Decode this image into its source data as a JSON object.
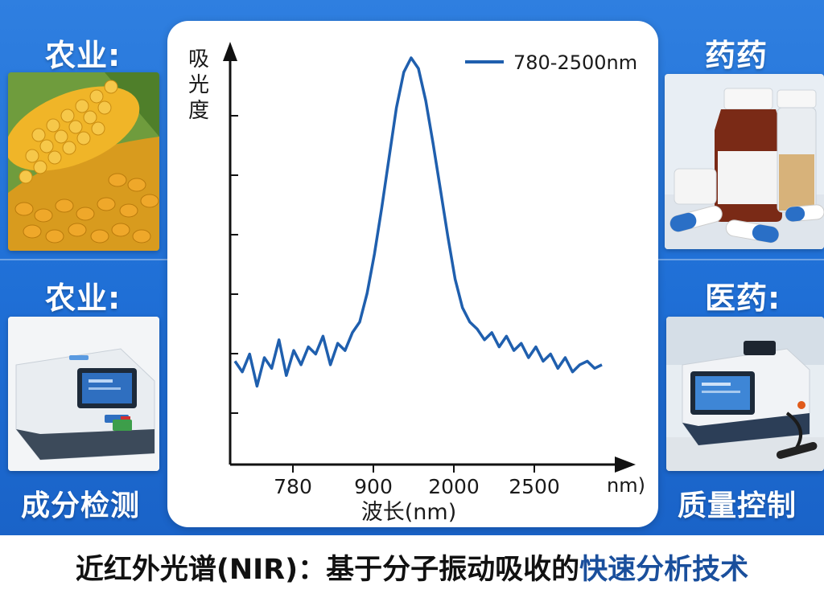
{
  "panels": {
    "top_left_label": "农业:",
    "bottom_left_label": "农业:",
    "bottom_left_caption": "成分检测",
    "top_right_label": "药药",
    "bottom_right_label": "医药:",
    "bottom_right_caption": "质量控制"
  },
  "icons": {
    "corn": "corn-photo-icon",
    "analyzer_left": "nir-analyzer-icon",
    "medicine": "medicine-bottles-icon",
    "analyzer_right": "nir-analyzer-probe-icon"
  },
  "caption": {
    "part1": "近红外光谱(NIR)：基于分子振动吸收的",
    "part2": "快速分析技术"
  },
  "colors": {
    "band_blue": "#1f6fd6",
    "line_blue": "#1f5fae",
    "caption_highlight": "#1a4f9c"
  },
  "chart_data": {
    "type": "line",
    "title": "",
    "xlabel": "波长(nm)",
    "ylabel": "吸光度",
    "x_unit": "nm)",
    "x_ticks": [
      "780",
      "900",
      "2000",
      "2500"
    ],
    "y_ticks_count": 6,
    "grid": false,
    "legend": {
      "position": "top-right",
      "entries": [
        "780-2500nm"
      ]
    },
    "series": [
      {
        "name": "780-2500nm",
        "x": [
          0.0,
          0.02,
          0.04,
          0.06,
          0.08,
          0.1,
          0.12,
          0.14,
          0.16,
          0.18,
          0.2,
          0.22,
          0.24,
          0.26,
          0.28,
          0.3,
          0.32,
          0.34,
          0.36,
          0.38,
          0.4,
          0.42,
          0.44,
          0.46,
          0.48,
          0.5,
          0.52,
          0.54,
          0.56,
          0.58,
          0.6,
          0.62,
          0.64,
          0.66,
          0.68,
          0.7,
          0.72,
          0.74,
          0.76,
          0.78,
          0.8,
          0.82,
          0.84,
          0.86,
          0.88,
          0.9,
          0.92,
          0.94,
          0.96,
          0.98,
          1.0
        ],
        "values": [
          0.15,
          0.12,
          0.17,
          0.08,
          0.16,
          0.13,
          0.21,
          0.11,
          0.18,
          0.14,
          0.19,
          0.17,
          0.22,
          0.14,
          0.2,
          0.18,
          0.23,
          0.26,
          0.34,
          0.45,
          0.58,
          0.72,
          0.86,
          0.96,
          1.0,
          0.97,
          0.88,
          0.76,
          0.63,
          0.5,
          0.38,
          0.3,
          0.26,
          0.24,
          0.21,
          0.23,
          0.19,
          0.22,
          0.18,
          0.2,
          0.16,
          0.19,
          0.15,
          0.17,
          0.13,
          0.16,
          0.12,
          0.14,
          0.15,
          0.13,
          0.14
        ]
      }
    ]
  }
}
